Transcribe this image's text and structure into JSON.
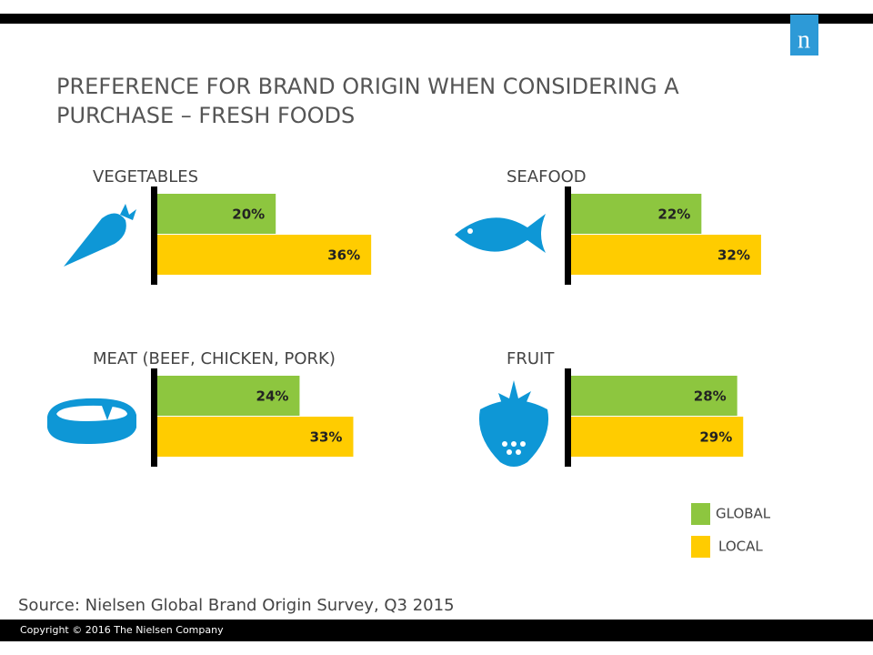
{
  "title": [
    "PREFERENCE FOR BRAND ORIGIN WHEN CONSIDERING A",
    "PURCHASE – FRESH FOODS"
  ],
  "logo": "n",
  "legend": [
    {
      "name": "GLOBAL",
      "color": "#8dc63f"
    },
    {
      "name": "LOCAL",
      "color": "#ffcc00"
    }
  ],
  "chart_data": [
    {
      "type": "bar",
      "title": "VEGETABLES",
      "values": [
        20,
        36
      ],
      "value_labels": [
        "20%",
        "36%"
      ]
    },
    {
      "type": "bar",
      "title": "SEAFOOD",
      "values": [
        22,
        32
      ],
      "value_labels": [
        "22%",
        "32%"
      ]
    },
    {
      "type": "bar",
      "title": "MEAT (BEEF, CHICKEN,  PORK)",
      "values": [
        24,
        33
      ],
      "value_labels": [
        "24%",
        "33%"
      ]
    },
    {
      "type": "bar",
      "title": "FRUIT",
      "values": [
        28,
        29
      ],
      "value_labels": [
        "28%",
        "29%"
      ]
    }
  ],
  "source": "Source:  Nielsen Global Brand Origin Survey, Q3 2015",
  "copyright": "Copyright © 2016 The Nielsen Company"
}
